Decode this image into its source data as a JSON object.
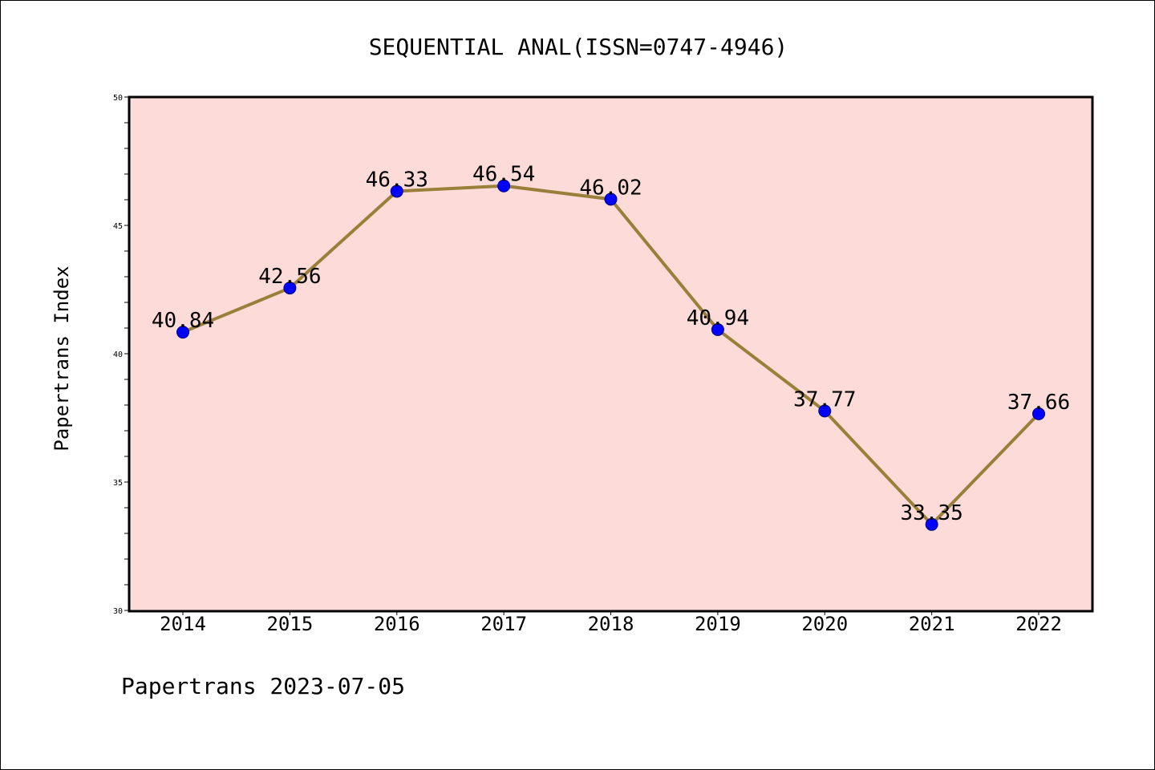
{
  "chart_data": {
    "type": "line",
    "title": "SEQUENTIAL ANAL(ISSN=0747-4946)",
    "xlabel": "",
    "ylabel": "Papertrans Index",
    "categories": [
      "2014",
      "2015",
      "2016",
      "2017",
      "2018",
      "2019",
      "2020",
      "2021",
      "2022"
    ],
    "series": [
      {
        "values": [
          40.84,
          42.56,
          46.33,
          46.54,
          46.02,
          40.94,
          37.77,
          33.35,
          37.66
        ],
        "labels": [
          "40.84",
          "42.56",
          "46.33",
          "46.54",
          "46.02",
          "40.94",
          "37.77",
          "33.35",
          "37.66"
        ]
      }
    ],
    "ylim": [
      30,
      50
    ],
    "yticks": [
      30,
      35,
      40,
      45,
      50
    ],
    "ytick_labels": [
      "30",
      "35",
      "40",
      "45",
      "50"
    ],
    "grid": false,
    "colors": {
      "plot_background": "#fddbd8",
      "line": "#9a7f3a",
      "marker": "#0000ff"
    }
  },
  "footer": "Papertrans 2023-07-05"
}
